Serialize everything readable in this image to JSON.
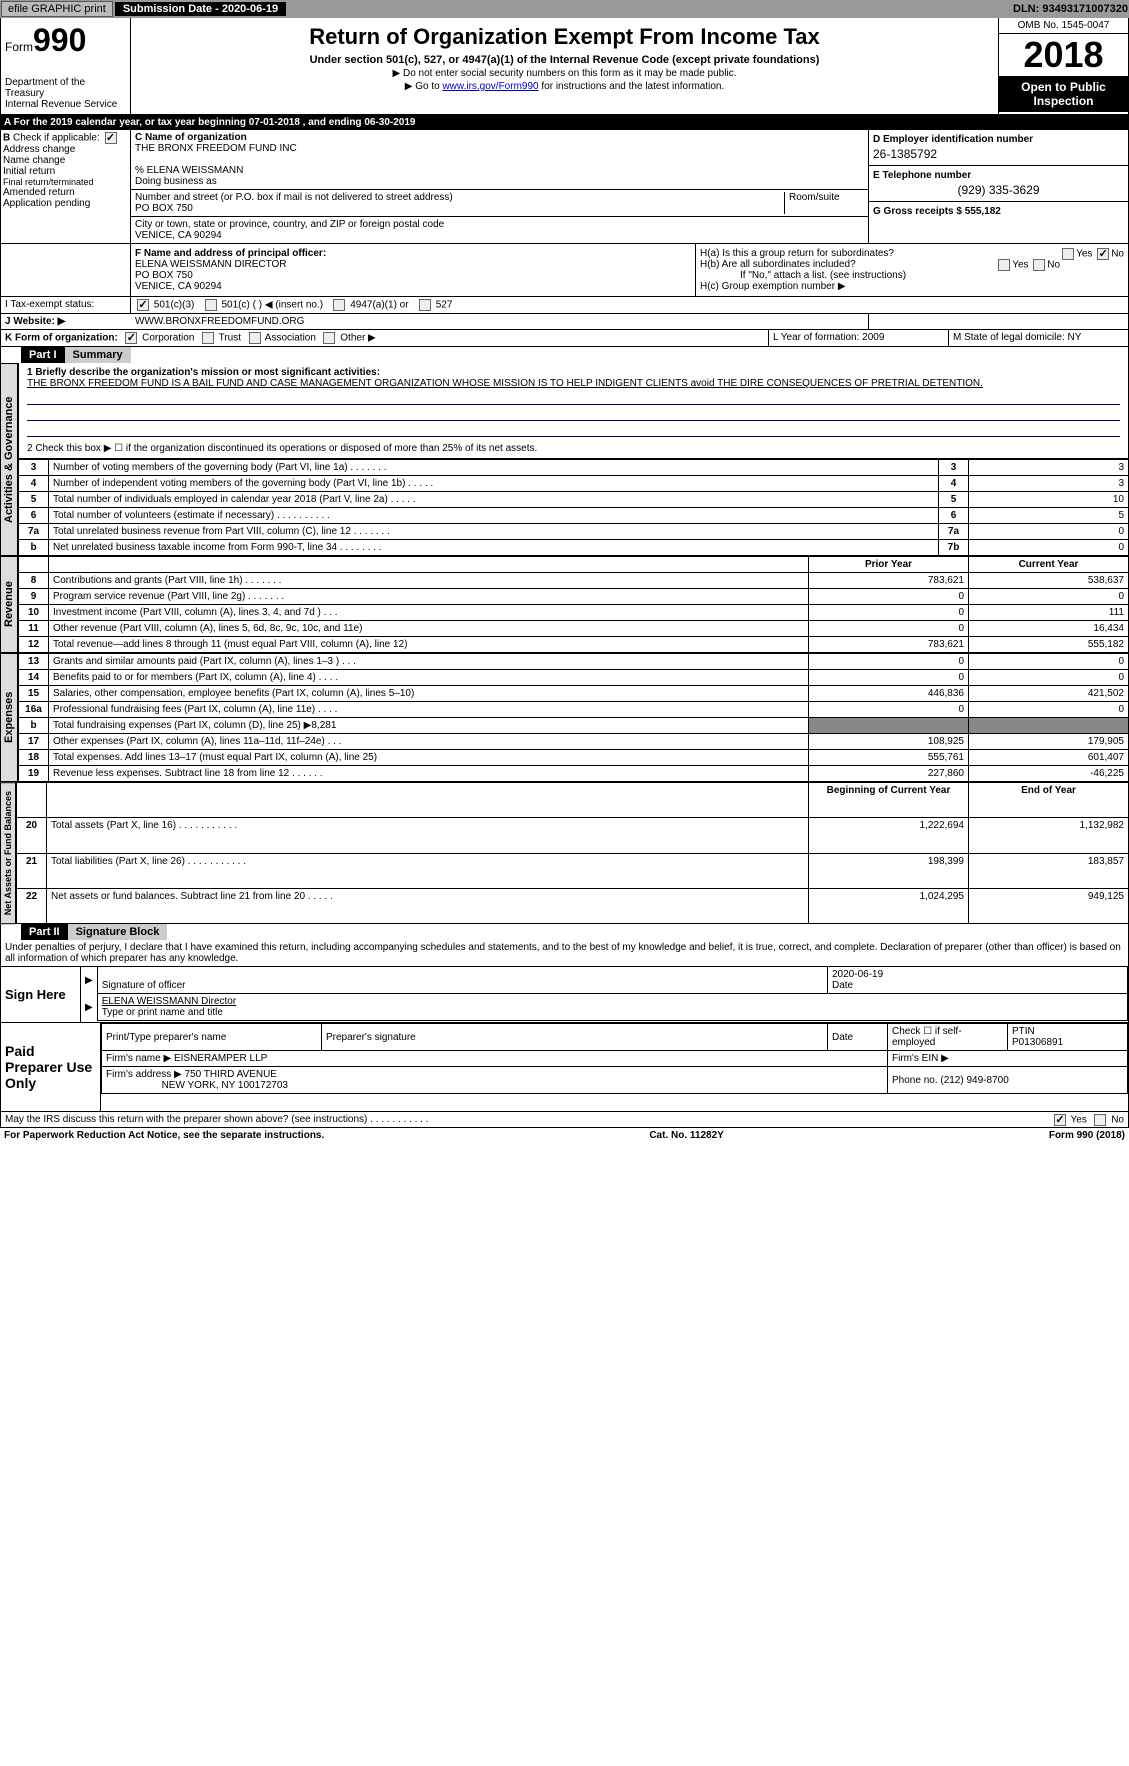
{
  "topbar": {
    "efile": "efile GRAPHIC print",
    "sub_label": "Submission Date - 2020-06-19",
    "dln": "DLN: 93493171007320"
  },
  "header": {
    "form_prefix": "Form",
    "form_num": "990",
    "dept1": "Department of the Treasury",
    "dept2": "Internal Revenue Service",
    "title": "Return of Organization Exempt From Income Tax",
    "subtitle": "Under section 501(c), 527, or 4947(a)(1) of the Internal Revenue Code (except private foundations)",
    "note1": "▶ Do not enter social security numbers on this form as it may be made public.",
    "note2_pre": "▶ Go to ",
    "note2_link": "www.irs.gov/Form990",
    "note2_post": " for instructions and the latest information.",
    "omb": "OMB No. 1545-0047",
    "year": "2018",
    "open": "Open to Public Inspection"
  },
  "rowA": "A   For the 2019 calendar year, or tax year beginning 07-01-2018     , and ending 06-30-2019",
  "B": {
    "title": "Check if applicable:",
    "items": [
      "Address change",
      "Name change",
      "Initial return",
      "Final return/terminated",
      "Amended return",
      "Application pending"
    ]
  },
  "C": {
    "name_lbl": "C Name of organization",
    "name": "THE BRONX FREEDOM FUND INC",
    "care": "% ELENA WEISSMANN",
    "dba_lbl": "Doing business as",
    "addr_lbl": "Number and street (or P.O. box if mail is not delivered to street address)",
    "room_lbl": "Room/suite",
    "addr": "PO BOX 750",
    "city_lbl": "City or town, state or province, country, and ZIP or foreign postal code",
    "city": "VENICE, CA  90294"
  },
  "D": {
    "lbl": "D Employer identification number",
    "val": "26-1385792"
  },
  "E": {
    "lbl": "E Telephone number",
    "val": "(929) 335-3629"
  },
  "G": {
    "lbl": "G Gross receipts $ 555,182"
  },
  "F": {
    "lbl": "F  Name and address of principal officer:",
    "line1": "ELENA WEISSMANN DIRECTOR",
    "line2": "PO BOX 750",
    "line3": "VENICE, CA  90294"
  },
  "H": {
    "a": "H(a)    Is this a group return for subordinates?",
    "b": "H(b)    Are all subordinates included?",
    "b_note": "If \"No,\" attach a list. (see instructions)",
    "c": "H(c)    Group exemption number ▶",
    "yes": "Yes",
    "no": "No"
  },
  "I": {
    "lbl": "I     Tax-exempt status:",
    "o1": "501(c)(3)",
    "o2": "501(c) (  ) ◀ (insert no.)",
    "o3": "4947(a)(1) or",
    "o4": "527"
  },
  "J": {
    "lbl": "J    Website: ▶",
    "val": "WWW.BRONXFREEDOMFUND.ORG"
  },
  "K": {
    "lbl": "K Form of organization:",
    "o1": "Corporation",
    "o2": "Trust",
    "o3": "Association",
    "o4": "Other ▶"
  },
  "L": {
    "lbl": "L Year of formation: 2009"
  },
  "M": {
    "lbl": "M State of legal domicile: NY"
  },
  "parts": {
    "p1": "Part I",
    "p1_title": "Summary",
    "p2": "Part II",
    "p2_title": "Signature Block"
  },
  "vtabs": {
    "ag": "Activities & Governance",
    "rev": "Revenue",
    "exp": "Expenses",
    "na": "Net Assets or Fund Balances"
  },
  "summary": {
    "l1_lbl": "1  Briefly describe the organization's mission or most significant activities:",
    "l1_txt": "THE BRONX FREEDOM FUND IS A BAIL FUND AND CASE MANAGEMENT ORGANIZATION WHOSE MISSION IS TO HELP INDIGENT CLIENTS avoid THE DIRE CONSEQUENCES OF PRETRIAL DETENTION.",
    "l2": "2    Check this box ▶ ☐  if the organization discontinued its operations or disposed of more than 25% of its net assets.",
    "rows_ag": [
      {
        "n": "3",
        "t": "Number of voting members of the governing body (Part VI, line 1a)  .      .      .      .      .      .      .",
        "r": "3",
        "v": "3"
      },
      {
        "n": "4",
        "t": "Number of independent voting members of the governing body (Part VI, line 1b)  .      .      .      .      .",
        "r": "4",
        "v": "3"
      },
      {
        "n": "5",
        "t": "Total number of individuals employed in calendar year 2018 (Part V, line 2a)  .      .      .      .      .",
        "r": "5",
        "v": "10"
      },
      {
        "n": "6",
        "t": "Total number of volunteers (estimate if necessary)  .      .      .      .      .      .      .      .      .      .",
        "r": "6",
        "v": "5"
      },
      {
        "n": "7a",
        "t": "Total unrelated business revenue from Part VIII, column (C), line 12  .      .      .      .      .      .      .",
        "r": "7a",
        "v": "0"
      },
      {
        "n": "b",
        "t": "Net unrelated business taxable income from Form 990-T, line 34  .      .      .      .      .      .      .      .",
        "r": "7b",
        "v": "0"
      }
    ],
    "hdr_prior": "Prior Year",
    "hdr_curr": "Current Year",
    "rows_rev": [
      {
        "n": "8",
        "t": "Contributions and grants (Part VIII, line 1h)  .      .      .      .      .      .      .",
        "p": "783,621",
        "c": "538,637"
      },
      {
        "n": "9",
        "t": "Program service revenue (Part VIII, line 2g)  .      .      .      .      .      .      .",
        "p": "0",
        "c": "0"
      },
      {
        "n": "10",
        "t": "Investment income (Part VIII, column (A), lines 3, 4, and 7d )  .      .      .",
        "p": "0",
        "c": "111"
      },
      {
        "n": "11",
        "t": "Other revenue (Part VIII, column (A), lines 5, 6d, 8c, 9c, 10c, and 11e)",
        "p": "0",
        "c": "16,434"
      },
      {
        "n": "12",
        "t": "Total revenue—add lines 8 through 11 (must equal Part VIII, column (A), line 12)",
        "p": "783,621",
        "c": "555,182"
      }
    ],
    "rows_exp": [
      {
        "n": "13",
        "t": "Grants and similar amounts paid (Part IX, column (A), lines 1–3 )  .      .      .",
        "p": "0",
        "c": "0"
      },
      {
        "n": "14",
        "t": "Benefits paid to or for members (Part IX, column (A), line 4)  .      .      .      .",
        "p": "0",
        "c": "0"
      },
      {
        "n": "15",
        "t": "Salaries, other compensation, employee benefits (Part IX, column (A), lines 5–10)",
        "p": "446,836",
        "c": "421,502"
      },
      {
        "n": "16a",
        "t": "Professional fundraising fees (Part IX, column (A), line 11e)  .      .      .      .",
        "p": "0",
        "c": "0"
      },
      {
        "n": "b",
        "t": "Total fundraising expenses (Part IX, column (D), line 25) ▶8,281",
        "p": "",
        "c": "",
        "gray": true
      },
      {
        "n": "17",
        "t": "Other expenses (Part IX, column (A), lines 11a–11d, 11f–24e)  .      .      .",
        "p": "108,925",
        "c": "179,905"
      },
      {
        "n": "18",
        "t": "Total expenses. Add lines 13–17 (must equal Part IX, column (A), line 25)",
        "p": "555,761",
        "c": "601,407"
      },
      {
        "n": "19",
        "t": "Revenue less expenses. Subtract line 18 from line 12  .      .      .      .      .      .",
        "p": "227,860",
        "c": "-46,225"
      }
    ],
    "hdr_beg": "Beginning of Current Year",
    "hdr_end": "End of Year",
    "rows_na": [
      {
        "n": "20",
        "t": "Total assets (Part X, line 16)  .      .      .      .      .      .      .      .      .      .      .",
        "p": "1,222,694",
        "c": "1,132,982"
      },
      {
        "n": "21",
        "t": "Total liabilities (Part X, line 26)  .      .      .      .      .      .      .      .      .      .      .",
        "p": "198,399",
        "c": "183,857"
      },
      {
        "n": "22",
        "t": "Net assets or fund balances. Subtract line 21 from line 20  .      .      .      .      .",
        "p": "1,024,295",
        "c": "949,125"
      }
    ]
  },
  "sig": {
    "perjury": "Under penalties of perjury, I declare that I have examined this return, including accompanying schedules and statements, and to the best of my knowledge and belief, it is true, correct, and complete. Declaration of preparer (other than officer) is based on all information of which preparer has any knowledge.",
    "sign_here": "Sign Here",
    "sig_officer": "Signature of officer",
    "date_lbl": "Date",
    "date_val": "2020-06-19",
    "name": "ELENA WEISSMANN Director",
    "name_lbl": "Type or print name and title",
    "paid": "Paid Preparer Use Only",
    "prep_name": "Print/Type preparer's name",
    "prep_sig": "Preparer's signature",
    "check_self": "Check ☐ if self-employed",
    "ptin_lbl": "PTIN",
    "ptin": "P01306891",
    "firm_name_lbl": "Firm's name    ▶",
    "firm_name": "EISNERAMPER LLP",
    "firm_ein": "Firm's EIN ▶",
    "firm_addr_lbl": "Firm's address ▶",
    "firm_addr1": "750 THIRD AVENUE",
    "firm_addr2": "NEW YORK, NY  100172703",
    "phone_lbl": "Phone no. (212) 949-8700",
    "discuss": "May the IRS discuss this return with the preparer shown above? (see instructions)  .      .      .      .      .      .      .      .      .      .      ."
  },
  "footer": {
    "left": "For Paperwork Reduction Act Notice, see the separate instructions.",
    "mid": "Cat. No. 11282Y",
    "right": "Form 990 (2018)"
  }
}
